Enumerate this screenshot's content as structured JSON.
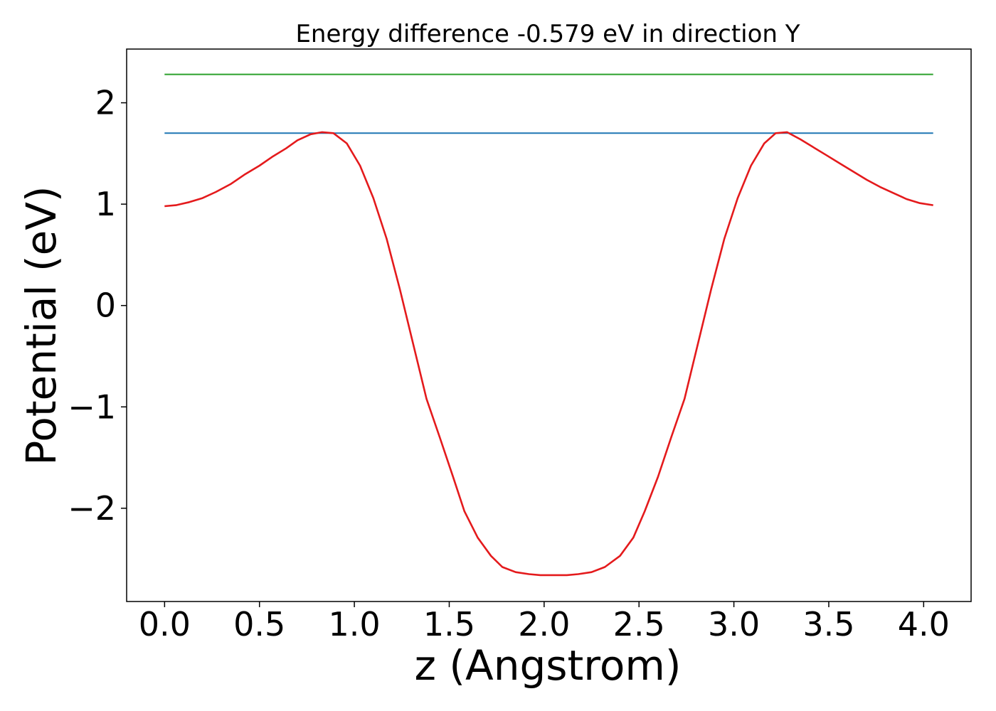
{
  "chart_data": {
    "type": "line",
    "title": "Energy difference -0.579 eV in direction Y",
    "xlabel": "z (Angstrom)",
    "ylabel": "Potential (eV)",
    "xlim": [
      -0.2,
      4.25
    ],
    "ylim": [
      -2.92,
      2.53
    ],
    "x_ticks": [
      0.0,
      0.5,
      1.0,
      1.5,
      2.0,
      2.5,
      3.0,
      3.5,
      4.0
    ],
    "x_tick_labels": [
      "0.0",
      "0.5",
      "1.0",
      "1.5",
      "2.0",
      "2.5",
      "3.0",
      "3.5",
      "4.0"
    ],
    "y_ticks": [
      -2,
      -1,
      0,
      1,
      2
    ],
    "y_tick_labels": [
      "−2",
      "−1",
      "0",
      "1",
      "2"
    ],
    "grid": false,
    "series": [
      {
        "color": "#2ca02c",
        "x": [
          0.0,
          4.05
        ],
        "y": [
          2.28,
          2.28
        ]
      },
      {
        "color": "#1f77b4",
        "x": [
          0.0,
          4.05
        ],
        "y": [
          1.7,
          1.7
        ]
      },
      {
        "color": "#e41a1c",
        "x": [
          0.0,
          0.06,
          0.13,
          0.2,
          0.27,
          0.35,
          0.42,
          0.5,
          0.57,
          0.64,
          0.7,
          0.77,
          0.83,
          0.89,
          0.96,
          1.03,
          1.1,
          1.17,
          1.24,
          1.31,
          1.38,
          1.45,
          1.52,
          1.58,
          1.65,
          1.72,
          1.78,
          1.85,
          1.92,
          1.98,
          2.05,
          2.12,
          2.18,
          2.25,
          2.32,
          2.4,
          2.47,
          2.53,
          2.6,
          2.67,
          2.74,
          2.81,
          2.88,
          2.95,
          3.02,
          3.09,
          3.16,
          3.22,
          3.28,
          3.35,
          3.42,
          3.49,
          3.56,
          3.63,
          3.7,
          3.77,
          3.84,
          3.91,
          3.98,
          4.05
        ],
        "y": [
          0.98,
          0.99,
          1.02,
          1.06,
          1.12,
          1.2,
          1.29,
          1.38,
          1.47,
          1.55,
          1.63,
          1.69,
          1.71,
          1.7,
          1.6,
          1.38,
          1.06,
          0.66,
          0.16,
          -0.38,
          -0.92,
          -1.3,
          -1.69,
          -2.03,
          -2.29,
          -2.47,
          -2.58,
          -2.63,
          -2.65,
          -2.66,
          -2.66,
          -2.66,
          -2.65,
          -2.63,
          -2.58,
          -2.47,
          -2.29,
          -2.03,
          -1.69,
          -1.3,
          -0.92,
          -0.38,
          0.16,
          0.66,
          1.06,
          1.38,
          1.6,
          1.7,
          1.71,
          1.64,
          1.56,
          1.48,
          1.4,
          1.32,
          1.24,
          1.17,
          1.11,
          1.05,
          1.01,
          0.99
        ]
      }
    ]
  }
}
